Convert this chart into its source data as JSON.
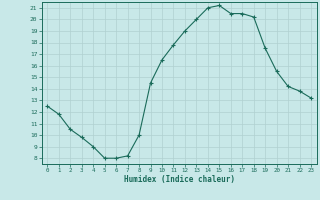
{
  "x": [
    0,
    1,
    2,
    3,
    4,
    5,
    6,
    7,
    8,
    9,
    10,
    11,
    12,
    13,
    14,
    15,
    16,
    17,
    18,
    19,
    20,
    21,
    22,
    23
  ],
  "y": [
    12.5,
    11.8,
    10.5,
    9.8,
    9.0,
    8.0,
    8.0,
    8.2,
    10.0,
    14.5,
    16.5,
    17.8,
    19.0,
    20.0,
    21.0,
    21.2,
    20.5,
    20.5,
    20.2,
    17.5,
    15.5,
    14.2,
    13.8,
    13.2
  ],
  "xlabel": "Humidex (Indice chaleur)",
  "xlim": [
    -0.5,
    23.5
  ],
  "ylim": [
    7.5,
    21.5
  ],
  "yticks": [
    8,
    9,
    10,
    11,
    12,
    13,
    14,
    15,
    16,
    17,
    18,
    19,
    20,
    21
  ],
  "xticks": [
    0,
    1,
    2,
    3,
    4,
    5,
    6,
    7,
    8,
    9,
    10,
    11,
    12,
    13,
    14,
    15,
    16,
    17,
    18,
    19,
    20,
    21,
    22,
    23
  ],
  "line_color": "#1a6b5a",
  "marker": "+",
  "bg_color": "#c8e8e8",
  "grid_color": "#b0d0d0"
}
